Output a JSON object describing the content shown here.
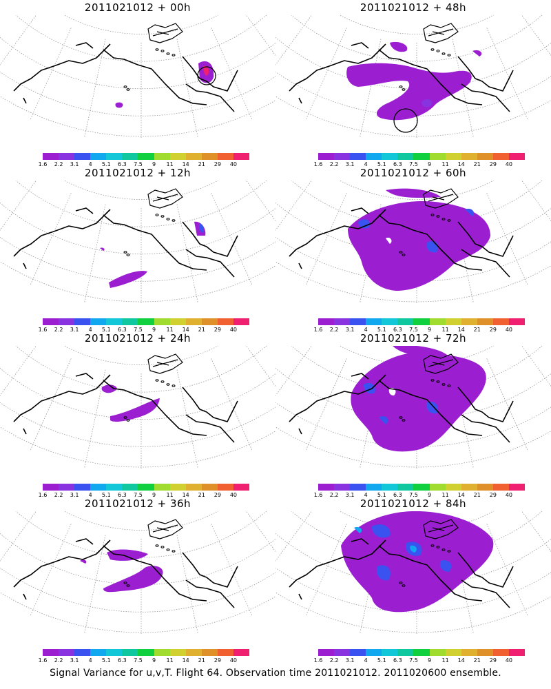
{
  "colorbar": {
    "colors": [
      "#9b1fd0",
      "#8832e0",
      "#3a52f0",
      "#12a8f0",
      "#12c8d8",
      "#10c8a0",
      "#10d040",
      "#a0dc30",
      "#d0d030",
      "#e0b030",
      "#e09028",
      "#f06030",
      "#f02070"
    ],
    "ticks": [
      "1.6",
      "2.2",
      "3.1",
      "4",
      "5.1",
      "6.3",
      "7.5",
      "9",
      "11",
      "14",
      "21",
      "29",
      "40"
    ]
  },
  "panels": [
    {
      "id": "00h",
      "title": "2011021012 + 00h",
      "col": 0,
      "row": 0
    },
    {
      "id": "48h",
      "title": "2011021012 + 48h",
      "col": 1,
      "row": 0
    },
    {
      "id": "12h",
      "title": "2011021012 + 12h",
      "col": 0,
      "row": 1
    },
    {
      "id": "60h",
      "title": "2011021012 + 60h",
      "col": 1,
      "row": 1
    },
    {
      "id": "24h",
      "title": "2011021012 + 24h",
      "col": 0,
      "row": 2
    },
    {
      "id": "72h",
      "title": "2011021012 + 72h",
      "col": 1,
      "row": 2
    },
    {
      "id": "36h",
      "title": "2011021012 + 36h",
      "col": 0,
      "row": 3
    },
    {
      "id": "84h",
      "title": "2011021012 + 84h",
      "col": 1,
      "row": 3
    }
  ],
  "footer": "Signal Variance for u,v,T. Flight 64. Observation time 2011021012. 2011020600 ensemble."
}
